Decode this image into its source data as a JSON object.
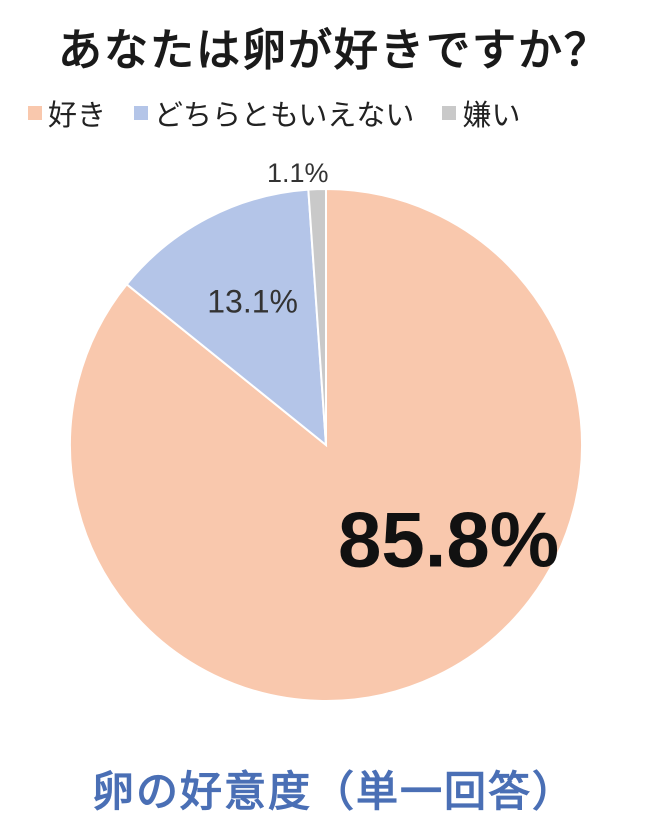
{
  "title": "あなたは卵が好きですか？",
  "subtitle": "卵の好意度（単一回答）",
  "chart_data": {
    "type": "pie",
    "start": "12 o'clock",
    "direction": "clockwise",
    "slices": [
      {
        "name": "好き",
        "value": 85.8,
        "label": "85.8%",
        "color": "#f9c8ad"
      },
      {
        "name": "どちらともいえない",
        "value": 13.1,
        "label": "13.1%",
        "color": "#b4c5e8"
      },
      {
        "name": "嫌い",
        "value": 1.1,
        "label": "1.1%",
        "color": "#c9c9c9"
      }
    ],
    "legend_position": "top"
  }
}
